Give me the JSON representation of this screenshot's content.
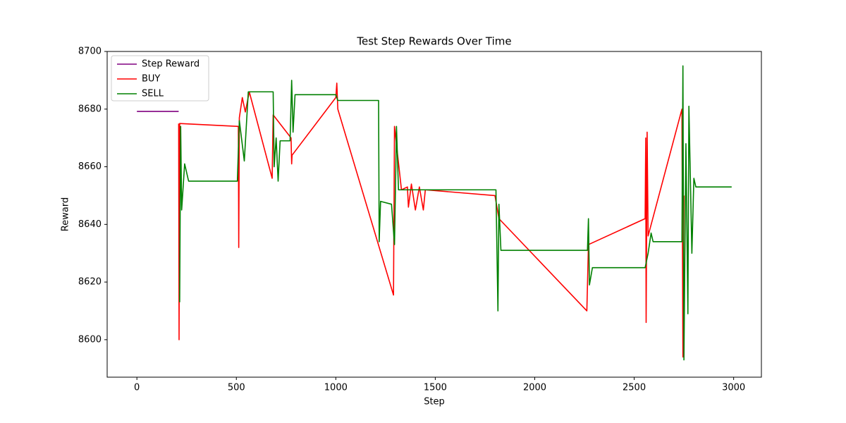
{
  "chart_data": {
    "type": "line",
    "title": "Test Step Rewards Over Time",
    "x_label": "Step",
    "y_label": "Reward",
    "xlim": [
      -149.5,
      3139.5
    ],
    "ylim": [
      8587,
      8700
    ],
    "xticks": [
      0,
      500,
      1000,
      1500,
      2000,
      2500,
      3000
    ],
    "yticks": [
      8600,
      8620,
      8640,
      8660,
      8680,
      8700
    ],
    "grid": false,
    "legend": "upper-left",
    "series": [
      {
        "name": "Step Reward",
        "color": "#800080",
        "x": [
          0,
          210
        ],
        "values": [
          8679.2,
          8679.2
        ]
      },
      {
        "name": "BUY",
        "color": "#ff0000",
        "x": [
          210,
          212,
          215,
          510,
          512,
          515,
          530,
          545,
          565,
          680,
          685,
          775,
          778,
          780,
          1000,
          1005,
          1010,
          1290,
          1295,
          1330,
          1360,
          1365,
          1380,
          1400,
          1420,
          1440,
          1450,
          1800,
          1820,
          2262,
          2270,
          2555,
          2558,
          2560,
          2565,
          2570,
          2740,
          2745,
          2750
        ],
        "values": [
          8675,
          8600,
          8675,
          8674,
          8632,
          8677,
          8684,
          8679,
          8686,
          8656,
          8678,
          8670,
          8661,
          8664,
          8684,
          8689,
          8680,
          8615.5,
          8674,
          8652,
          8653,
          8646,
          8654,
          8645,
          8653,
          8645,
          8652,
          8650,
          8642,
          8610,
          8633,
          8642,
          8670,
          8606,
          8672,
          8636,
          8680,
          8594,
          8650
        ]
      },
      {
        "name": "SELL",
        "color": "#008000",
        "x": [
          215,
          220,
          225,
          240,
          260,
          505,
          515,
          540,
          560,
          685,
          690,
          700,
          710,
          720,
          770,
          778,
          785,
          795,
          1000,
          1010,
          1215,
          1218,
          1225,
          1280,
          1295,
          1305,
          1315,
          1805,
          1815,
          1820,
          1830,
          2265,
          2270,
          2275,
          2290,
          2555,
          2570,
          2585,
          2595,
          2740,
          2745,
          2750,
          2760,
          2770,
          2775,
          2790,
          2800,
          2810,
          2990
        ],
        "values": [
          8613,
          8674,
          8645,
          8661,
          8655,
          8655,
          8676,
          8662,
          8686,
          8686,
          8660,
          8670,
          8655,
          8669,
          8669,
          8690,
          8672,
          8685,
          8685,
          8683,
          8683,
          8634,
          8648,
          8647,
          8633,
          8674,
          8652,
          8652,
          8610,
          8647,
          8631,
          8631,
          8642,
          8619,
          8625,
          8625,
          8630,
          8637,
          8634,
          8634,
          8695,
          8593,
          8668,
          8609,
          8681,
          8630,
          8656,
          8653,
          8653
        ]
      }
    ]
  }
}
